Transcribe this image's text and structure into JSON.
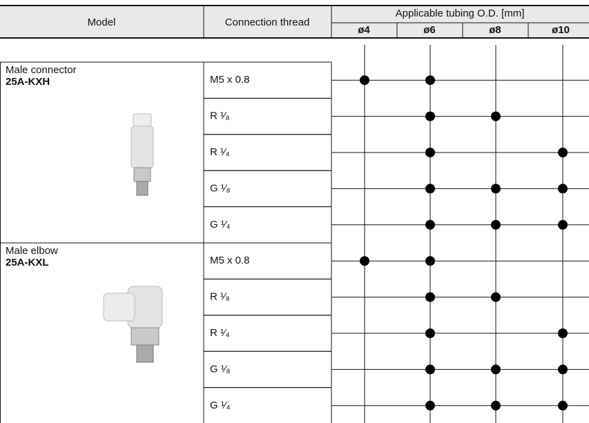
{
  "header": {
    "model": "Model",
    "connection_thread": "Connection thread",
    "tubing": "Applicable tubing O.D. [mm]",
    "sizes": [
      "ø4",
      "ø6",
      "ø8",
      "ø10"
    ]
  },
  "groups": [
    {
      "name": "Male connector",
      "code": "25A-KXH",
      "rows": [
        {
          "thread": "M5 x 0.8",
          "available": [
            true,
            true,
            false,
            false
          ]
        },
        {
          "thread": "R ¹⁄₈",
          "available": [
            false,
            true,
            true,
            false
          ]
        },
        {
          "thread": "R ¹⁄₄",
          "available": [
            false,
            true,
            false,
            true
          ]
        },
        {
          "thread": "G ¹⁄₈",
          "available": [
            false,
            true,
            true,
            true
          ]
        },
        {
          "thread": "G ¹⁄₄",
          "available": [
            false,
            true,
            true,
            true
          ]
        }
      ]
    },
    {
      "name": "Male elbow",
      "code": "25A-KXL",
      "rows": [
        {
          "thread": "M5 x 0.8",
          "available": [
            true,
            true,
            false,
            false
          ]
        },
        {
          "thread": "R ¹⁄₈",
          "available": [
            false,
            true,
            true,
            false
          ]
        },
        {
          "thread": "R ¹⁄₄",
          "available": [
            false,
            true,
            false,
            true
          ]
        },
        {
          "thread": "G ¹⁄₈",
          "available": [
            false,
            true,
            true,
            true
          ]
        },
        {
          "thread": "G ¹⁄₄",
          "available": [
            false,
            true,
            true,
            true
          ]
        }
      ]
    }
  ]
}
